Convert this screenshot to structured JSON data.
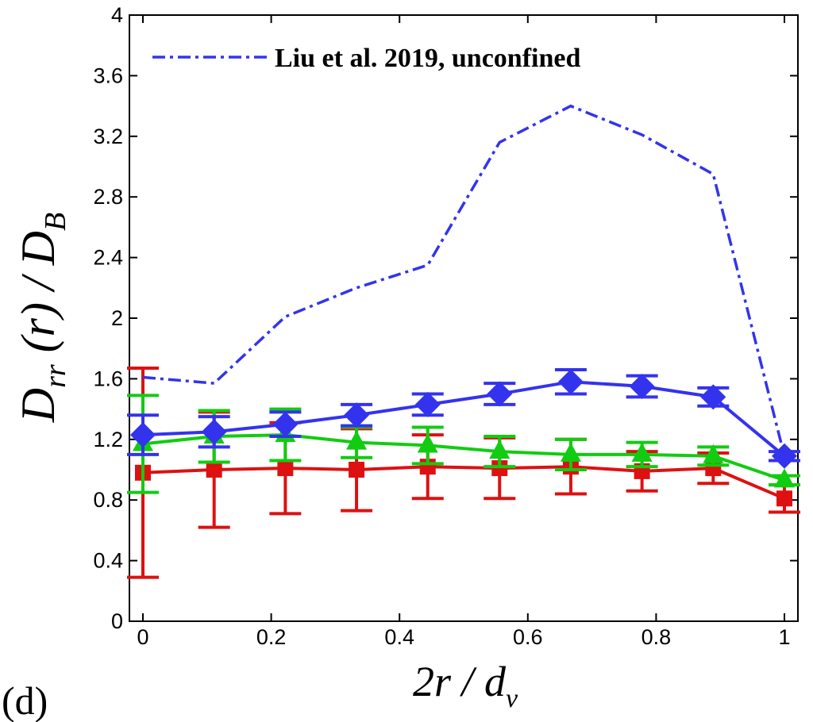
{
  "chart_data": {
    "type": "line",
    "panel_label": "(d)",
    "xlabel": {
      "main": "2r / d",
      "sub": "v"
    },
    "ylabel": {
      "base": "D",
      "sub": "rr",
      "middle": " (r) / ",
      "base2": "D",
      "sub2": "B"
    },
    "xlim": [
      0,
      1
    ],
    "ylim": [
      0,
      4
    ],
    "x_ticks": [
      0,
      0.2,
      0.4,
      0.6,
      0.8,
      1
    ],
    "x_tick_labels": [
      "0",
      "0.2",
      "0.4",
      "0.6",
      "0.8",
      "1"
    ],
    "y_ticks": [
      0,
      0.4,
      0.8,
      1.2,
      1.6,
      2,
      2.4,
      2.8,
      3.2,
      3.6,
      4
    ],
    "y_tick_labels": [
      "0",
      "0.4",
      "0.8",
      "1.2",
      "1.6",
      "2",
      "2.4",
      "2.8",
      "3.2",
      "3.6",
      "4"
    ],
    "legend": {
      "location": "top-left",
      "entries": [
        "Liu et al. 2019, unconfined"
      ]
    },
    "series": [
      {
        "name": "Liu et al. 2019, unconfined",
        "color": "#3333ee",
        "style": "dashdot",
        "x": [
          0,
          0.111,
          0.222,
          0.333,
          0.444,
          0.556,
          0.667,
          0.778,
          0.889,
          1.0
        ],
        "y": [
          1.61,
          1.57,
          2.01,
          2.2,
          2.35,
          3.16,
          3.4,
          3.21,
          2.95,
          1.09
        ]
      },
      {
        "name": "blue diamonds",
        "color": "#3333ee",
        "marker": "diamond",
        "x": [
          0,
          0.111,
          0.222,
          0.333,
          0.444,
          0.556,
          0.667,
          0.778,
          0.889,
          1.0
        ],
        "y": [
          1.23,
          1.25,
          1.3,
          1.36,
          1.43,
          1.5,
          1.58,
          1.55,
          1.48,
          1.09
        ],
        "err": [
          0.13,
          0.1,
          0.08,
          0.07,
          0.07,
          0.07,
          0.08,
          0.07,
          0.06,
          0.03
        ]
      },
      {
        "name": "green triangles",
        "color": "#11cc11",
        "marker": "triangle",
        "x": [
          0,
          0.111,
          0.222,
          0.333,
          0.444,
          0.556,
          0.667,
          0.778,
          0.889,
          1.0
        ],
        "y": [
          1.17,
          1.22,
          1.23,
          1.18,
          1.16,
          1.12,
          1.1,
          1.1,
          1.09,
          0.93
        ],
        "err": [
          0.32,
          0.17,
          0.17,
          0.1,
          0.12,
          0.1,
          0.1,
          0.08,
          0.06,
          0.03
        ]
      },
      {
        "name": "red squares",
        "color": "#dd1111",
        "marker": "square",
        "x": [
          0,
          0.111,
          0.222,
          0.333,
          0.444,
          0.556,
          0.667,
          0.778,
          0.889,
          1.0
        ],
        "y": [
          0.98,
          1.0,
          1.01,
          1.0,
          1.02,
          1.01,
          1.02,
          0.99,
          1.01,
          0.81
        ],
        "err": [
          0.69,
          0.38,
          0.3,
          0.27,
          0.21,
          0.2,
          0.18,
          0.13,
          0.1,
          0.09
        ]
      }
    ]
  }
}
